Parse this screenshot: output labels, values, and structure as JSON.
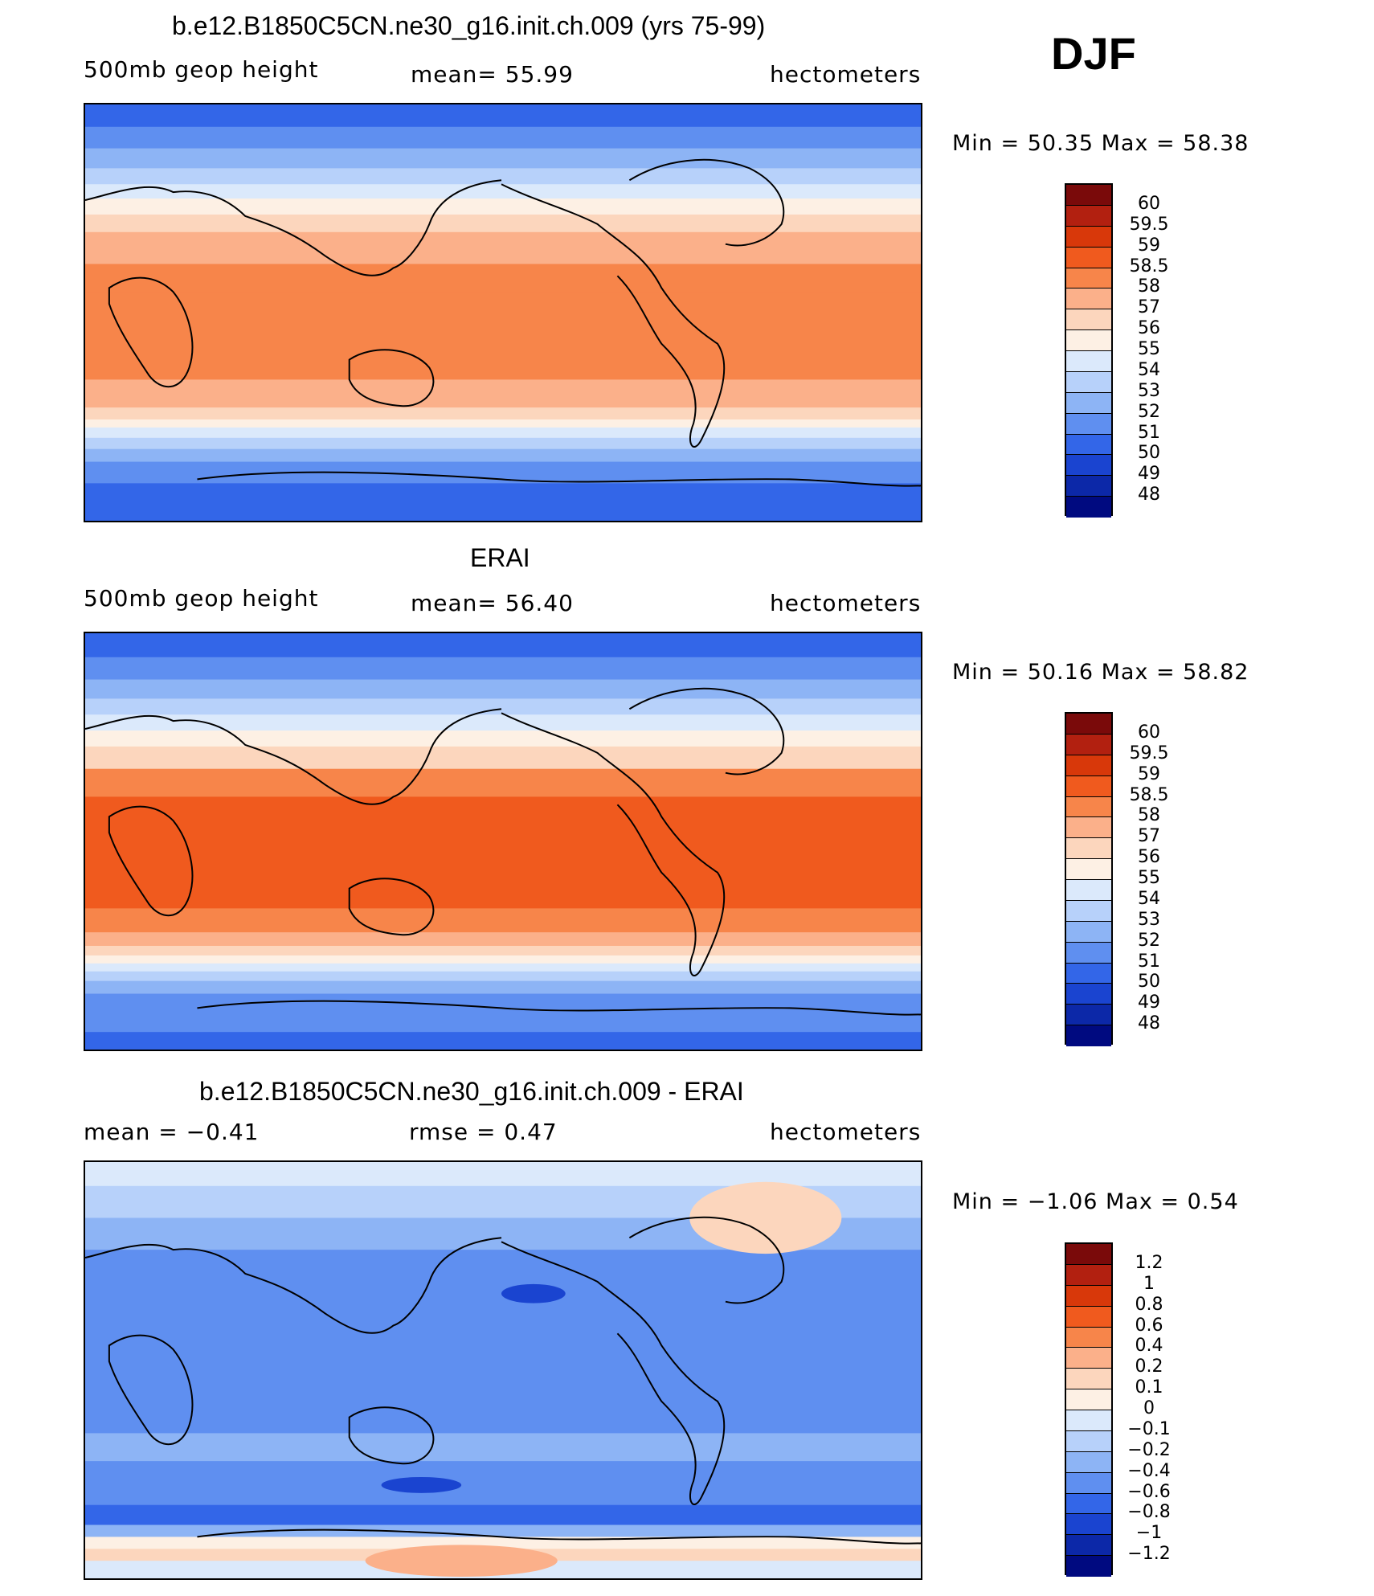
{
  "season": "DJF",
  "panels": [
    {
      "title": "b.e12.B1850C5CN.ne30_g16.init.ch.009 (yrs 75-99)",
      "left": "500mb geop height",
      "center": "mean=  55.99",
      "right": "hectometers",
      "minmax": "Min =   50.35 Max =   58.38",
      "colorbar": {
        "labels": [
          "60",
          "59.5",
          "59",
          "58.5",
          "58",
          "57",
          "56",
          "55",
          "54",
          "53",
          "52",
          "51",
          "50",
          "49",
          "48"
        ],
        "colors": [
          "#7a0a0a",
          "#b22010",
          "#d8380a",
          "#f05a1e",
          "#f7854a",
          "#fbb08a",
          "#fcd6bd",
          "#fdf0e4",
          "#dbe9fb",
          "#b7d1fa",
          "#8db4f5",
          "#5f8ff0",
          "#3366e8",
          "#1a44d0",
          "#0c28a8",
          "#000a80"
        ]
      },
      "field_type": "absolute_model"
    },
    {
      "title": "ERAI",
      "left": "500mb geop height",
      "center": "mean=  56.40",
      "right": "hectometers",
      "minmax": "Min =   50.16 Max =   58.82",
      "colorbar": {
        "labels": [
          "60",
          "59.5",
          "59",
          "58.5",
          "58",
          "57",
          "56",
          "55",
          "54",
          "53",
          "52",
          "51",
          "50",
          "49",
          "48"
        ],
        "colors": [
          "#7a0a0a",
          "#b22010",
          "#d8380a",
          "#f05a1e",
          "#f7854a",
          "#fbb08a",
          "#fcd6bd",
          "#fdf0e4",
          "#dbe9fb",
          "#b7d1fa",
          "#8db4f5",
          "#5f8ff0",
          "#3366e8",
          "#1a44d0",
          "#0c28a8",
          "#000a80"
        ]
      },
      "field_type": "absolute_obs"
    },
    {
      "title": "b.e12.B1850C5CN.ne30_g16.init.ch.009 - ERAI",
      "left": "mean =   −0.41",
      "center": "rmse =    0.47",
      "right": "hectometers",
      "minmax": "Min =  −1.06 Max =    0.54",
      "colorbar": {
        "labels": [
          "1.2",
          "1",
          "0.8",
          "0.6",
          "0.4",
          "0.2",
          "0.1",
          "0",
          "−0.1",
          "−0.2",
          "−0.4",
          "−0.6",
          "−0.8",
          "−1",
          "−1.2"
        ],
        "colors": [
          "#7a0a0a",
          "#b22010",
          "#d8380a",
          "#f05a1e",
          "#f7854a",
          "#fbb08a",
          "#fcd6bd",
          "#fdf0e4",
          "#dbe9fb",
          "#b7d1fa",
          "#8db4f5",
          "#5f8ff0",
          "#3366e8",
          "#1a44d0",
          "#0c28a8",
          "#000a80"
        ]
      },
      "field_type": "difference"
    }
  ]
}
